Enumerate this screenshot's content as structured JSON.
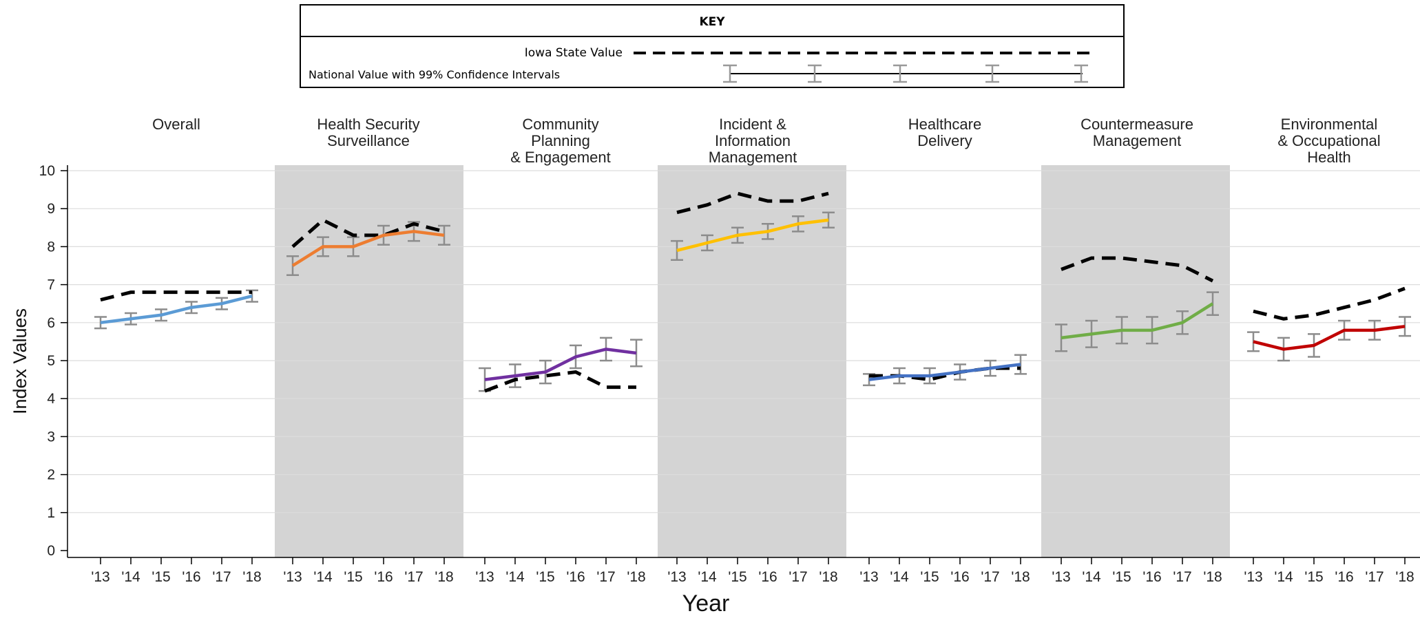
{
  "key": {
    "title": "KEY",
    "state_label": "Iowa State Value",
    "national_label": "National Value with 99% Confidence Intervals"
  },
  "chart_data": {
    "type": "line",
    "xlabel": "Year",
    "ylabel": "Index Values",
    "ylim": [
      0,
      10
    ],
    "yticks": [
      "0",
      "1",
      "2",
      "3",
      "4",
      "5",
      "6",
      "7",
      "8",
      "9",
      "10"
    ],
    "categories": [
      "'13",
      "'14",
      "'15",
      "'16",
      "'17",
      "'18"
    ],
    "grid": true,
    "panels": [
      {
        "title": [
          "Overall"
        ],
        "shaded": false,
        "color": "#5b9bd5",
        "national": [
          6.0,
          6.1,
          6.2,
          6.4,
          6.5,
          6.7
        ],
        "ci": [
          0.15,
          0.15,
          0.15,
          0.15,
          0.15,
          0.15
        ],
        "iowa": [
          6.6,
          6.8,
          6.8,
          6.8,
          6.8,
          6.8
        ]
      },
      {
        "title": [
          "Health Security",
          "Surveillance"
        ],
        "shaded": true,
        "color": "#ed7d31",
        "national": [
          7.5,
          8.0,
          8.0,
          8.3,
          8.4,
          8.3
        ],
        "ci": [
          0.25,
          0.25,
          0.25,
          0.25,
          0.25,
          0.25
        ],
        "iowa": [
          8.0,
          8.7,
          8.3,
          8.3,
          8.6,
          8.4
        ]
      },
      {
        "title": [
          "Community",
          "Planning",
          "& Engagement"
        ],
        "shaded": false,
        "color": "#7030a0",
        "national": [
          4.5,
          4.6,
          4.7,
          5.1,
          5.3,
          5.2
        ],
        "ci": [
          0.3,
          0.3,
          0.3,
          0.3,
          0.3,
          0.35
        ],
        "iowa": [
          4.2,
          4.5,
          4.6,
          4.7,
          4.3,
          4.3
        ]
      },
      {
        "title": [
          "Incident &",
          "Information",
          "Management"
        ],
        "shaded": true,
        "color": "#ffc000",
        "national": [
          7.9,
          8.1,
          8.3,
          8.4,
          8.6,
          8.7
        ],
        "ci": [
          0.25,
          0.2,
          0.2,
          0.2,
          0.2,
          0.2
        ],
        "iowa": [
          8.9,
          9.1,
          9.4,
          9.2,
          9.2,
          9.4
        ]
      },
      {
        "title": [
          "Healthcare",
          "Delivery"
        ],
        "shaded": false,
        "color": "#4472c4",
        "national": [
          4.5,
          4.6,
          4.6,
          4.7,
          4.8,
          4.9
        ],
        "ci": [
          0.15,
          0.2,
          0.2,
          0.2,
          0.2,
          0.25
        ],
        "iowa": [
          4.6,
          4.6,
          4.5,
          4.7,
          4.8,
          4.8
        ]
      },
      {
        "title": [
          "Countermeasure",
          "Management"
        ],
        "shaded": true,
        "color": "#70ad47",
        "national": [
          5.6,
          5.7,
          5.8,
          5.8,
          6.0,
          6.5
        ],
        "ci": [
          0.35,
          0.35,
          0.35,
          0.35,
          0.3,
          0.3
        ],
        "iowa": [
          7.4,
          7.7,
          7.7,
          7.6,
          7.5,
          7.1
        ]
      },
      {
        "title": [
          "Environmental",
          "& Occupational",
          "Health"
        ],
        "shaded": false,
        "color": "#c00000",
        "national": [
          5.5,
          5.3,
          5.4,
          5.8,
          5.8,
          5.9
        ],
        "ci": [
          0.25,
          0.3,
          0.3,
          0.25,
          0.25,
          0.25
        ],
        "iowa": [
          6.3,
          6.1,
          6.2,
          6.4,
          6.6,
          6.9
        ]
      }
    ]
  }
}
